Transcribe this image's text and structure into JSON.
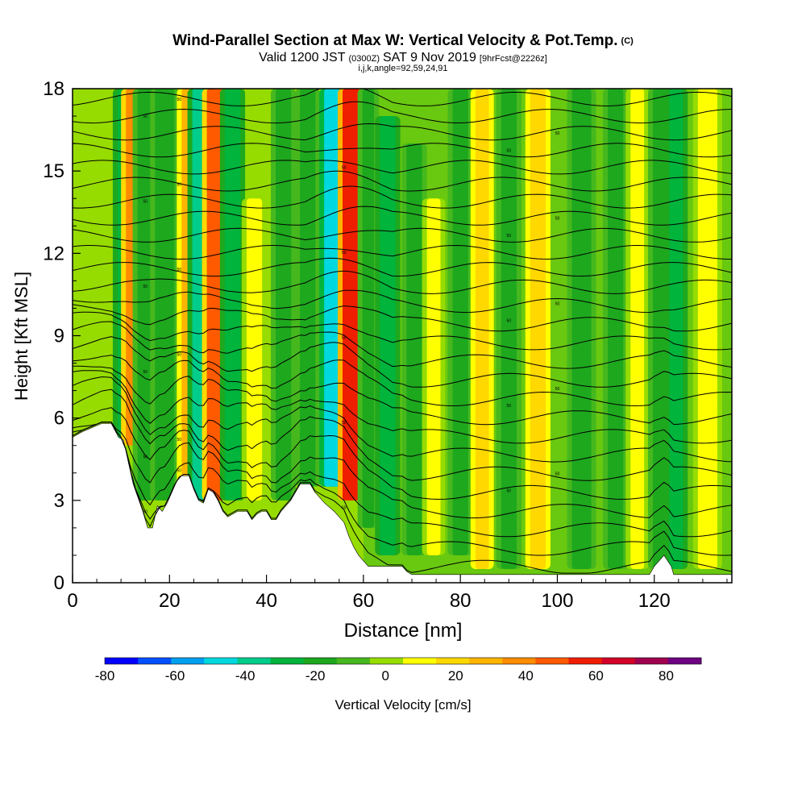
{
  "chart_data": {
    "type": "heatmap",
    "title": "Wind-Parallel Section at Max W: Vertical Velocity & Pot.Temp.",
    "title_mark": "(C)",
    "subtitle": {
      "prefix": "Valid 1200 JST",
      "utc": "(0300Z)",
      "date": "SAT 9 Nov 2019",
      "forecast": "[9hrFcst@2226z]"
    },
    "params": "i,j,k,angle=92,59,24,91",
    "xlabel": "Distance [nm]",
    "ylabel": "Height [Kft MSL]",
    "xlim": [
      0,
      136
    ],
    "ylim": [
      0,
      18
    ],
    "x_ticks": [
      "0",
      "20",
      "40",
      "60",
      "80",
      "100",
      "120"
    ],
    "x_tick_values": [
      0,
      20,
      40,
      60,
      80,
      100,
      120
    ],
    "y_ticks": [
      "0",
      "3",
      "6",
      "9",
      "12",
      "15",
      "18"
    ],
    "y_tick_values": [
      0,
      3,
      6,
      9,
      12,
      15,
      18
    ],
    "colorbar": {
      "label": "Vertical Velocity [cm/s]",
      "range": [
        -80,
        90
      ],
      "step": 10,
      "tick_labels": [
        "-80",
        "-60",
        "-40",
        "-20",
        "0",
        "20",
        "40",
        "60",
        "80"
      ],
      "tick_values": [
        -80,
        -60,
        -40,
        -20,
        0,
        20,
        40,
        60,
        80
      ],
      "colors": [
        "#0000ff",
        "#0050ff",
        "#00a0f0",
        "#00d8e0",
        "#00cc8c",
        "#00b43c",
        "#1ea81e",
        "#46b81e",
        "#96dc00",
        "#ffff00",
        "#ffd800",
        "#ffb400",
        "#ff8c00",
        "#ff5a00",
        "#f01e00",
        "#d20028",
        "#a00050",
        "#6e0082"
      ]
    },
    "velocity_bands": [
      {
        "x": 10.5,
        "w": 1.2,
        "ymin": 5,
        "ymax": 18,
        "v": -25
      },
      {
        "x": 12.0,
        "w": 1.0,
        "ymin": 5,
        "ymax": 18,
        "v": 40
      },
      {
        "x": 15.0,
        "w": 1.6,
        "ymin": 3,
        "ymax": 18,
        "v": -20
      },
      {
        "x": 19.0,
        "w": 2.0,
        "ymin": 3,
        "ymax": 18,
        "v": -15
      },
      {
        "x": 23.5,
        "w": 1.0,
        "ymin": 3.5,
        "ymax": 18,
        "v": 30
      },
      {
        "x": 26.5,
        "w": 1.8,
        "ymin": 3,
        "ymax": 18,
        "v": -35
      },
      {
        "x": 29.5,
        "w": 1.8,
        "ymin": 3,
        "ymax": 18,
        "v": 55
      },
      {
        "x": 33.0,
        "w": 1.6,
        "ymin": 3,
        "ymax": 18,
        "v": -25
      },
      {
        "x": 37.5,
        "w": 1.6,
        "ymin": 3,
        "ymax": 14,
        "v": 15
      },
      {
        "x": 43.5,
        "w": 1.6,
        "ymin": 3,
        "ymax": 18,
        "v": -20
      },
      {
        "x": 48.5,
        "w": 1.6,
        "ymin": 3.5,
        "ymax": 18,
        "v": -15
      },
      {
        "x": 53.5,
        "w": 1.6,
        "ymin": 3.5,
        "ymax": 18,
        "v": -50
      },
      {
        "x": 57.5,
        "w": 1.8,
        "ymin": 3,
        "ymax": 18,
        "v": 60
      },
      {
        "x": 61.0,
        "w": 1.2,
        "ymin": 2,
        "ymax": 18,
        "v": -20
      },
      {
        "x": 65.0,
        "w": 1.6,
        "ymin": 1,
        "ymax": 17,
        "v": -25
      },
      {
        "x": 70.5,
        "w": 1.6,
        "ymin": 1,
        "ymax": 16,
        "v": -20
      },
      {
        "x": 74.5,
        "w": 1.4,
        "ymin": 1,
        "ymax": 14,
        "v": 15
      },
      {
        "x": 80.0,
        "w": 1.6,
        "ymin": 1,
        "ymax": 18,
        "v": -20
      },
      {
        "x": 84.5,
        "w": 1.4,
        "ymin": 0.5,
        "ymax": 18,
        "v": 25
      },
      {
        "x": 90.0,
        "w": 1.6,
        "ymin": 0.5,
        "ymax": 18,
        "v": -15
      },
      {
        "x": 96.0,
        "w": 1.6,
        "ymin": 0.5,
        "ymax": 18,
        "v": 20
      },
      {
        "x": 105.0,
        "w": 2.0,
        "ymin": 0.5,
        "ymax": 18,
        "v": -15
      },
      {
        "x": 112.0,
        "w": 1.6,
        "ymin": 0.5,
        "ymax": 18,
        "v": -20
      },
      {
        "x": 116.5,
        "w": 1.4,
        "ymin": 0.5,
        "ymax": 18,
        "v": 15
      },
      {
        "x": 121.5,
        "w": 1.8,
        "ymin": 0.5,
        "ymax": 18,
        "v": -15
      },
      {
        "x": 124.5,
        "w": 1.4,
        "ymin": 0.5,
        "ymax": 18,
        "v": -25
      },
      {
        "x": 131.0,
        "w": 2.0,
        "ymin": 0.5,
        "ymax": 18,
        "v": 15
      }
    ],
    "terrain": [
      [
        0,
        5.3
      ],
      [
        2,
        5.5
      ],
      [
        6,
        5.8
      ],
      [
        8,
        5.8
      ],
      [
        9.5,
        5.3
      ],
      [
        10.5,
        5.2
      ],
      [
        11.5,
        4.4
      ],
      [
        12.5,
        3.6
      ],
      [
        13.5,
        3.1
      ],
      [
        14.5,
        2.6
      ],
      [
        15.5,
        2.0
      ],
      [
        16.5,
        2.0
      ],
      [
        17.5,
        2.8
      ],
      [
        18.5,
        2.6
      ],
      [
        19.5,
        2.9
      ],
      [
        20.5,
        3.3
      ],
      [
        21.5,
        3.7
      ],
      [
        22.5,
        3.9
      ],
      [
        24,
        3.9
      ],
      [
        25,
        3.4
      ],
      [
        26,
        3.0
      ],
      [
        27,
        2.9
      ],
      [
        28,
        3.4
      ],
      [
        29,
        3.3
      ],
      [
        30,
        3.0
      ],
      [
        31,
        2.6
      ],
      [
        32,
        2.4
      ],
      [
        34,
        2.6
      ],
      [
        36,
        2.6
      ],
      [
        37,
        2.3
      ],
      [
        38,
        2.5
      ],
      [
        39,
        2.6
      ],
      [
        40,
        2.6
      ],
      [
        41,
        2.3
      ],
      [
        42,
        2.3
      ],
      [
        43,
        2.6
      ],
      [
        45,
        3.0
      ],
      [
        46,
        3.3
      ],
      [
        47,
        3.6
      ],
      [
        49,
        3.6
      ],
      [
        50,
        3.3
      ],
      [
        52,
        2.9
      ],
      [
        54,
        2.6
      ],
      [
        56,
        2.2
      ],
      [
        57,
        1.7
      ],
      [
        58,
        1.3
      ],
      [
        59,
        1.0
      ],
      [
        60,
        0.8
      ],
      [
        61,
        0.6
      ],
      [
        63,
        0.6
      ],
      [
        66,
        0.6
      ],
      [
        68,
        0.6
      ],
      [
        69,
        0.4
      ],
      [
        70,
        0.3
      ],
      [
        110,
        0.3
      ],
      [
        115,
        0.3
      ],
      [
        119,
        0.3
      ],
      [
        120,
        0.6
      ],
      [
        122,
        1.0
      ],
      [
        123.5,
        0.6
      ],
      [
        124,
        0.3
      ],
      [
        136,
        0.3
      ]
    ],
    "isentrope_labels": [
      "50",
      "50",
      "50",
      "50",
      "50",
      "50",
      "50",
      "50",
      "50",
      "50",
      "50",
      "50",
      "50",
      "50",
      "50",
      "50",
      "50",
      "50",
      "50",
      "50",
      "50",
      "50",
      "50",
      "50",
      "50",
      "50",
      "50",
      "50"
    ]
  }
}
